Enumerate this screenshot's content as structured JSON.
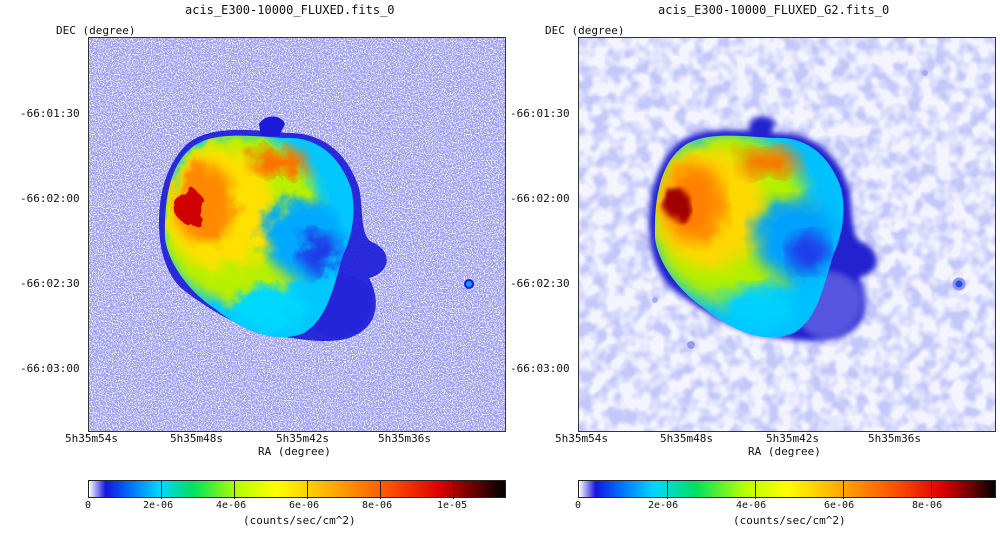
{
  "colors": {
    "background": "#ffffff",
    "colormap": [
      "#ffffff",
      "#1515e0",
      "#0070ff",
      "#00d8ff",
      "#00e060",
      "#b8ff00",
      "#ffff00",
      "#ffb000",
      "#ff5000",
      "#e00000",
      "#600000",
      "#000000"
    ]
  },
  "chart_data": [
    {
      "type": "heatmap",
      "title": "acis_E300-10000_FLUXED.fits_0",
      "xlabel": "RA (degree)",
      "ylabel": "DEC (degree)",
      "x_ticks": [
        "5h35m54s",
        "5h35m48s",
        "5h35m42s",
        "5h35m36s"
      ],
      "y_ticks": [
        "-66:01:30",
        "-66:02:00",
        "-66:02:30",
        "-66:03:00"
      ],
      "colorbar": {
        "label": "(counts/sec/cm^2)",
        "ticks": [
          "0",
          "2e-06",
          "4e-06",
          "6e-06",
          "8e-06",
          "1e-05"
        ],
        "range": [
          0,
          1.15e-05
        ]
      },
      "smoothed": false
    },
    {
      "type": "heatmap",
      "title": "acis_E300-10000_FLUXED_G2.fits_0",
      "xlabel": "RA (degree)",
      "ylabel": "DEC (degree)",
      "x_ticks": [
        "5h35m54s",
        "5h35m48s",
        "5h35m42s",
        "5h35m36s"
      ],
      "y_ticks": [
        "-66:01:30",
        "-66:02:00",
        "-66:02:30",
        "-66:03:00"
      ],
      "colorbar": {
        "label": "(counts/sec/cm^2)",
        "ticks": [
          "0",
          "2e-06",
          "4e-06",
          "6e-06",
          "8e-06"
        ],
        "range": [
          0,
          9.5e-06
        ]
      },
      "smoothed": true
    }
  ]
}
